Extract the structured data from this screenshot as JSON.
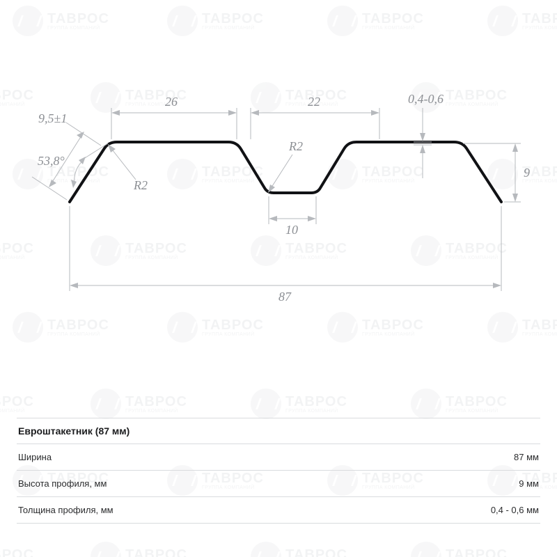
{
  "watermark": {
    "brand": "ТАВРОС",
    "subtitle": "ГРУППА КОМПАНИЙ"
  },
  "diagram": {
    "background": "#ffffff",
    "profile_stroke": "#111215",
    "profile_stroke_width": 4,
    "dim_stroke": "#b6b9bd",
    "dim_text_color": "#8c8f94",
    "dim_fontsize": 18,
    "labels": {
      "top_a": "26",
      "top_b": "22",
      "thickness": "0,4-0,6",
      "edge_len": "9,5±1",
      "angle": "53,8°",
      "r2_left": "R2",
      "r2_center": "R2",
      "valley_w": "10",
      "right_h": "9",
      "total_w": "87"
    }
  },
  "table": {
    "title": "Евроштакетник (87 мм)",
    "rows": [
      {
        "label": "Ширина",
        "value": "87 мм"
      },
      {
        "label": "Высота профиля, мм",
        "value": "9 мм"
      },
      {
        "label": "Толщина профиля, мм",
        "value": "0,4 - 0,6 мм"
      }
    ]
  }
}
